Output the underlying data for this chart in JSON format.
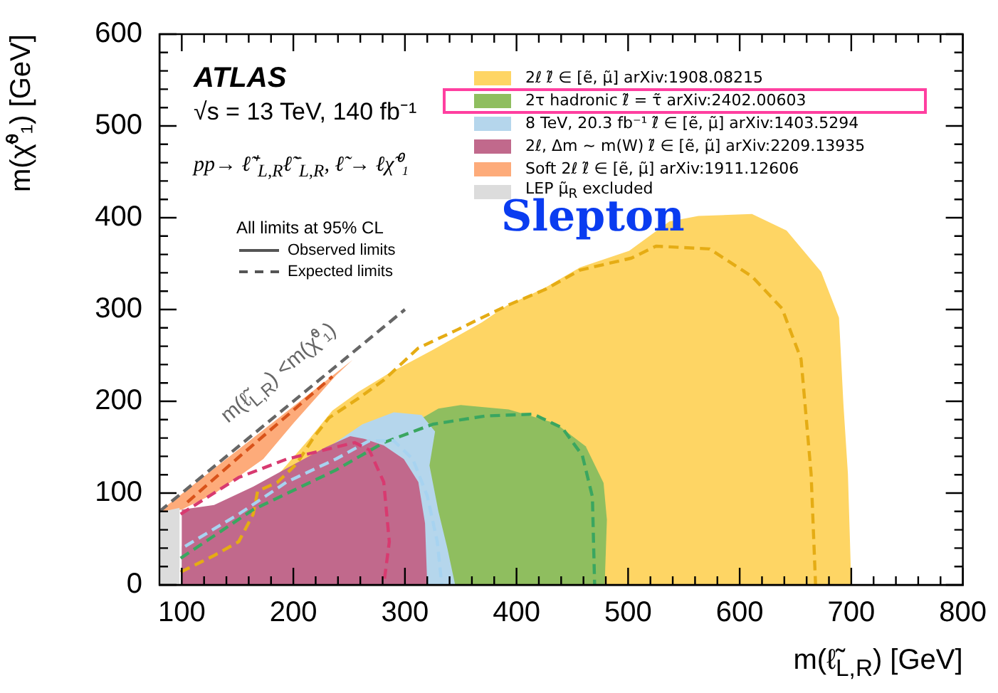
{
  "chart_data": {
    "type": "area",
    "xlabel": "m(ℓ̃$_{L,R}$) [GeV]",
    "ylabel": "m(χ̃⁰₁) [GeV]",
    "xlim": [
      80,
      800
    ],
    "ylim": [
      0,
      600
    ],
    "xticks": [
      100,
      {
        "value": 120,
        "label": null
      },
      {
        "value": 140,
        "label": null
      },
      {
        "value": 160,
        "label": null
      },
      {
        "value": 180,
        "label": null
      },
      200,
      {
        "value": 220,
        "label": null
      },
      {
        "value": 240,
        "label": null
      },
      {
        "value": 260,
        "label": null
      },
      {
        "value": 280,
        "label": null
      },
      300,
      {
        "value": 320,
        "label": null
      },
      {
        "value": 340,
        "label": null
      },
      {
        "value": 360,
        "label": null
      },
      {
        "value": 380,
        "label": null
      },
      400,
      {
        "value": 420,
        "label": null
      },
      {
        "value": 440,
        "label": null
      },
      {
        "value": 460,
        "label": null
      },
      {
        "value": 480,
        "label": null
      },
      500,
      {
        "value": 520,
        "label": null
      },
      {
        "value": 540,
        "label": null
      },
      {
        "value": 560,
        "label": null
      },
      {
        "value": 580,
        "label": null
      },
      600,
      {
        "value": 620,
        "label": null
      },
      {
        "value": 640,
        "label": null
      },
      {
        "value": 660,
        "label": null
      },
      {
        "value": 680,
        "label": null
      },
      700,
      {
        "value": 720,
        "label": null
      },
      {
        "value": 740,
        "label": null
      },
      {
        "value": 760,
        "label": null
      },
      {
        "value": 780,
        "label": null
      },
      800
    ],
    "yticks": [
      0,
      {
        "value": 20,
        "label": null
      },
      {
        "value": 40,
        "label": null
      },
      {
        "value": 60,
        "label": null
      },
      {
        "value": 80,
        "label": null
      },
      100,
      {
        "value": 120,
        "label": null
      },
      {
        "value": 140,
        "label": null
      },
      {
        "value": 160,
        "label": null
      },
      {
        "value": 180,
        "label": null
      },
      200,
      {
        "value": 220,
        "label": null
      },
      {
        "value": 240,
        "label": null
      },
      {
        "value": 260,
        "label": null
      },
      {
        "value": 280,
        "label": null
      },
      300,
      {
        "value": 320,
        "label": null
      },
      {
        "value": 340,
        "label": null
      },
      {
        "value": 360,
        "label": null
      },
      {
        "value": 380,
        "label": null
      },
      400,
      {
        "value": 420,
        "label": null
      },
      {
        "value": 440,
        "label": null
      },
      {
        "value": 460,
        "label": null
      },
      {
        "value": 480,
        "label": null
      },
      500,
      {
        "value": 520,
        "label": null
      },
      {
        "value": 540,
        "label": null
      },
      {
        "value": 560,
        "label": null
      },
      {
        "value": 580,
        "label": null
      },
      600
    ],
    "grid": false,
    "legend": "top right",
    "marker": "none",
    "series": [
      {
        "name": "2ℓ   ℓ̃ ∈ [ẽ, μ̃] arXiv:1908.08215",
        "color": "#fed564",
        "x": [
          100,
          100,
          150,
          190,
          215,
          235,
          258,
          285,
          325,
          369,
          391,
          426,
          457,
          501,
          537,
          563,
          611,
          642,
          673,
          689,
          693,
          697,
          700
        ],
        "values": [
          0,
          20,
          null,
          125,
          160,
          190,
          210,
          230,
          256,
          286,
          304,
          324,
          346,
          364,
          396,
          402,
          404,
          386,
          341,
          291,
          196,
          121,
          0
        ]
      },
      {
        "name": "2τ hadronic   ℓ̃ = τ̃ arXiv:2402.00603",
        "color": "#8fbe5f",
        "x": [
          100,
          165,
          240,
          300,
          330,
          350,
          393,
          435,
          462,
          478,
          481,
          479,
          100
        ],
        "values": [
          30,
          null,
          null,
          null,
          192,
          196,
          191,
          176,
          151,
          111,
          71,
          0,
          0
        ]
      },
      {
        "name": "8 TeV, 20.3 fb⁻¹   ℓ̃ ∈ [ẽ, μ̃] arXiv:1403.5294",
        "color": "#b5d6ec",
        "x": [
          100,
          150,
          200,
          240,
          262,
          290,
          315,
          327,
          322,
          330,
          338,
          345,
          100
        ],
        "values": [
          42,
          null,
          null,
          null,
          175,
          188,
          185,
          167,
          130,
          80,
          40,
          0,
          0
        ]
      },
      {
        "name": "2ℓ, Δm ~ m(W)   ℓ̃ ∈ [ẽ, μ̃] arXiv:2209.13935",
        "color": "#c1698c",
        "x": [
          100,
          100,
          129,
          164,
          194,
          229,
          251,
          264,
          281,
          299,
          312,
          318,
          320
        ],
        "values": [
          0,
          82,
          87,
          107,
          127,
          150,
          162,
          159,
          152,
          137,
          112,
          67,
          0
        ]
      },
      {
        "name": "Soft 2ℓ   ℓ̃ ∈ [ẽ, μ̃] arXiv:1911.12606",
        "color": "#fdab7a",
        "x": [
          80,
          253,
          238,
          200,
          173,
          130,
          100
        ],
        "values": [
          80,
          245,
          228,
          176,
          137,
          100,
          82
        ]
      },
      {
        "name": "LEP μ̃$_{R}$ excluded",
        "color": "#dcdcdc",
        "x": [
          80,
          80,
          98,
          98
        ],
        "values": [
          0,
          79,
          84,
          0
        ]
      },
      {
        "type": "line",
        "line_style": "dashed",
        "color": "#e5ac14",
        "x": [
          99,
          129,
          151,
          164,
          168,
          186,
          203,
          219,
          232,
          258,
          281,
          312,
          347,
          391,
          426,
          457,
          503,
          525,
          573,
          611,
          638,
          655,
          664,
          668
        ],
        "values": [
          14,
          32,
          47,
          77,
          102,
          112,
          132,
          162,
          182,
          203,
          223,
          258,
          278,
          304,
          322,
          343,
          356,
          369,
          366,
          336,
          301,
          246,
          121,
          0
        ]
      },
      {
        "type": "line",
        "line_style": "dashed",
        "color": "#3aa660",
        "x": [
          99,
          164,
          238,
          281,
          325,
          372,
          415,
          441,
          459,
          468,
          470
        ],
        "values": [
          29,
          82,
          125,
          155,
          175,
          184,
          186,
          171,
          141,
          96,
          0
        ]
      },
      {
        "type": "line",
        "line_style": "dashed",
        "color": "#a7d3f0",
        "x": [
          103,
          151,
          194,
          238,
          268,
          290,
          307,
          320,
          329,
          333
        ],
        "values": [
          42,
          77,
          112,
          137,
          157,
          157,
          137,
          97,
          47,
          0
        ]
      },
      {
        "type": "line",
        "line_style": "dashed",
        "color": "#d83a70",
        "x": [
          99,
          151,
          194,
          255,
          268,
          281,
          286,
          281
        ],
        "values": [
          77,
          117,
          137,
          155,
          147,
          112,
          47,
          0
        ]
      },
      {
        "type": "line",
        "line_style": "dashed",
        "color": "#d9531a",
        "x": [
          105,
          150,
          195,
          235
        ],
        "values": [
          90,
          138,
          185,
          227
        ]
      },
      {
        "type": "line",
        "line_style": "dashed",
        "color": "#666666",
        "x": [
          80,
          300
        ],
        "values": [
          80,
          300
        ]
      }
    ],
    "annotations": [
      "ATLAS",
      "√s = 13 TeV, 140 fb⁻¹",
      "pp→ ℓ̃⁺$_{L,R}$ℓ̃⁻$_{L,R}$, ℓ̃ → ℓχ̃⁰₁",
      "All limits at 95% CL",
      "Observed limits",
      "Expected limits",
      "Slepton",
      "m(ℓ̃$_{L,R}$) <m(χ̃⁰₁)"
    ]
  }
}
